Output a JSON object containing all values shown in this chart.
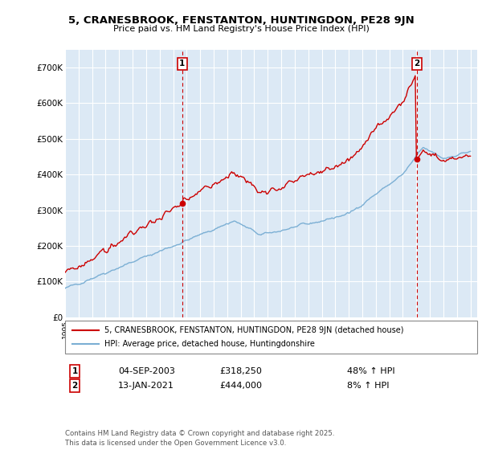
{
  "title1": "5, CRANESBROOK, FENSTANTON, HUNTINGDON, PE28 9JN",
  "title2": "Price paid vs. HM Land Registry's House Price Index (HPI)",
  "bg_color": "#dce9f5",
  "hpi_color": "#7bafd4",
  "price_color": "#cc0000",
  "ylim": [
    0,
    750000
  ],
  "yticks": [
    0,
    100000,
    200000,
    300000,
    400000,
    500000,
    600000,
    700000
  ],
  "ytick_labels": [
    "£0",
    "£100K",
    "£200K",
    "£300K",
    "£400K",
    "£500K",
    "£600K",
    "£700K"
  ],
  "marker1_year": 2003.67,
  "marker1_price": 318250,
  "marker2_year": 2021.04,
  "marker2_price": 444000,
  "legend_label1": "5, CRANESBROOK, FENSTANTON, HUNTINGDON, PE28 9JN (detached house)",
  "legend_label2": "HPI: Average price, detached house, Huntingdonshire",
  "ann1_date": "04-SEP-2003",
  "ann1_amount": "£318,250",
  "ann1_pct": "48% ↑ HPI",
  "ann2_date": "13-JAN-2021",
  "ann2_amount": "£444,000",
  "ann2_pct": "8% ↑ HPI",
  "footnote": "Contains HM Land Registry data © Crown copyright and database right 2025.\nThis data is licensed under the Open Government Licence v3.0."
}
